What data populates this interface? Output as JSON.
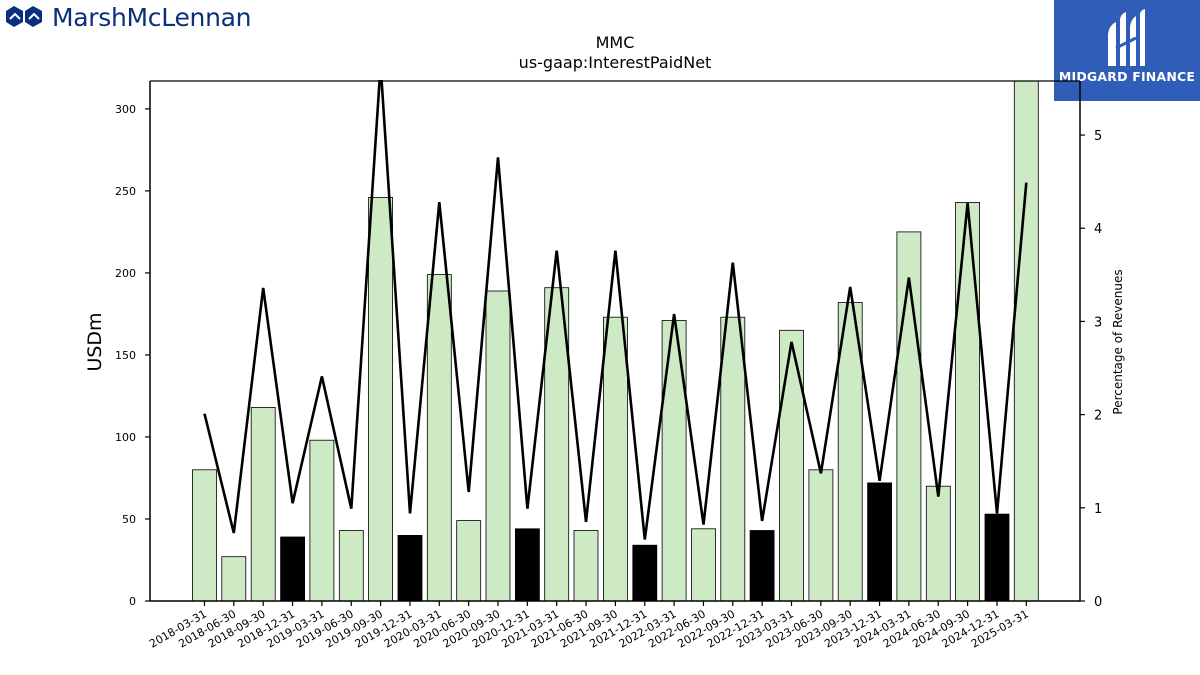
{
  "header": {
    "brand_name": "MarshMcLennan",
    "brand_color": "#0b2f7a",
    "brand_icon": "marsh-mclennan-logo-icon",
    "badge_name": "MIDGARD FINANCE",
    "badge_color": "#2f5db8",
    "badge_icon": "midgard-logo-icon"
  },
  "chart_data": {
    "type": "bar",
    "title": "MMC",
    "subtitle": "us-gaap:InterestPaidNet",
    "ylabel": "USDm",
    "y2label": "Percentage of Revenues",
    "ylim": [
      0,
      317
    ],
    "y2lim": [
      0,
      5.58
    ],
    "yticks": [
      0,
      50,
      100,
      150,
      200,
      250,
      300
    ],
    "y2ticks": [
      0,
      1,
      2,
      3,
      4,
      5
    ],
    "grid": false,
    "colors": {
      "bar_light": "#cdeac5",
      "bar_dark": "#000000",
      "line": "#000000"
    },
    "categories": [
      "2018-03-31",
      "2018-06-30",
      "2018-09-30",
      "2018-12-31",
      "2019-03-31",
      "2019-06-30",
      "2019-09-30",
      "2019-12-31",
      "2020-03-31",
      "2020-06-30",
      "2020-09-30",
      "2020-12-31",
      "2021-03-31",
      "2021-06-30",
      "2021-09-30",
      "2021-12-31",
      "2022-03-31",
      "2022-06-30",
      "2022-09-30",
      "2022-12-31",
      "2023-03-31",
      "2023-06-30",
      "2023-09-30",
      "2023-12-31",
      "2024-03-31",
      "2024-06-30",
      "2024-09-30",
      "2024-12-31",
      "2025-03-31"
    ],
    "series": [
      {
        "type": "bar",
        "axis": "left",
        "values": [
          80,
          27,
          118,
          39,
          98,
          43,
          246,
          40,
          199,
          49,
          189,
          44,
          191,
          43,
          173,
          34,
          171,
          44,
          173,
          43,
          165,
          80,
          182,
          72,
          225,
          70,
          243,
          53,
          318
        ],
        "dark": [
          false,
          false,
          false,
          true,
          false,
          false,
          false,
          true,
          false,
          false,
          false,
          true,
          false,
          false,
          false,
          true,
          false,
          false,
          false,
          true,
          false,
          false,
          false,
          true,
          false,
          false,
          false,
          true,
          false
        ]
      },
      {
        "type": "line",
        "axis": "right",
        "values": [
          2.01,
          0.73,
          3.36,
          1.05,
          2.41,
          0.99,
          5.75,
          0.94,
          4.28,
          1.17,
          4.76,
          0.99,
          3.76,
          0.85,
          3.76,
          0.66,
          3.08,
          0.82,
          3.63,
          0.86,
          2.78,
          1.37,
          3.37,
          1.29,
          3.47,
          1.12,
          4.27,
          0.94,
          4.49
        ]
      }
    ]
  }
}
